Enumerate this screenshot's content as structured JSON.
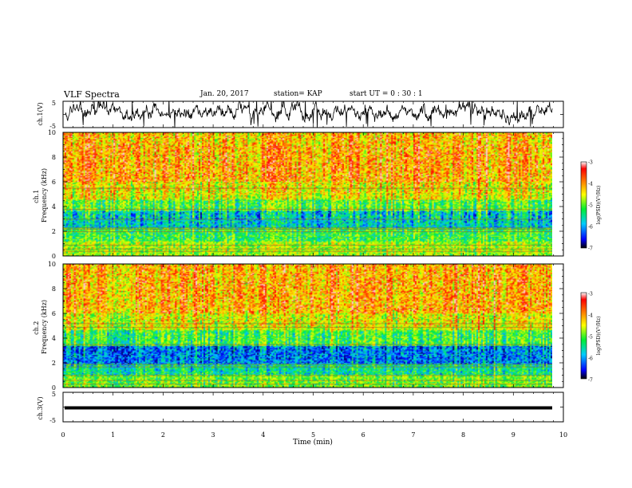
{
  "header": {
    "title": "VLF Spectra",
    "date": "Jan. 20, 2017",
    "station": "station= KAP",
    "start": "start  UT =   0 : 30 : 1"
  },
  "chart_data": [
    {
      "type": "line",
      "panel": "ch1-waveform",
      "ylabel": "ch.1(V)",
      "ylim": [
        -5,
        5
      ],
      "yticks": [
        "5",
        "-5"
      ],
      "xlim": [
        0,
        10
      ]
    },
    {
      "type": "heatmap",
      "panel": "ch1-spectrogram",
      "ylabel": "ch.1\nFrequency (kHz)",
      "ylim": [
        0,
        10
      ],
      "yticks": [
        "0",
        "2",
        "4",
        "6",
        "8",
        "10"
      ],
      "xlim": [
        0,
        10
      ],
      "colorbar": {
        "label": "log(PSD)(V²/Hz)",
        "range": [
          -7,
          -3
        ],
        "ticks": [
          "-3",
          "-4",
          "-5",
          "-6",
          "-7"
        ]
      }
    },
    {
      "type": "heatmap",
      "panel": "ch2-spectrogram",
      "ylabel": "ch.2\nFrequency (kHz)",
      "ylim": [
        0,
        10
      ],
      "yticks": [
        "0",
        "2",
        "4",
        "6",
        "8",
        "10"
      ],
      "xlim": [
        0,
        10
      ],
      "colorbar": {
        "label": "log(PSD)(V²/Hz)",
        "range": [
          -7,
          -3
        ],
        "ticks": [
          "-3",
          "-4",
          "-5",
          "-6",
          "-7"
        ]
      }
    },
    {
      "type": "line",
      "panel": "ch3-waveform",
      "ylabel": "ch.3(V)",
      "ylim": [
        -5,
        5
      ],
      "yticks": [
        "5",
        "-5"
      ],
      "xlim": [
        0,
        10
      ],
      "xlabel": "Time (min)",
      "xticks": [
        "0",
        "1",
        "2",
        "3",
        "4",
        "5",
        "6",
        "7",
        "8",
        "9",
        "10"
      ]
    }
  ]
}
